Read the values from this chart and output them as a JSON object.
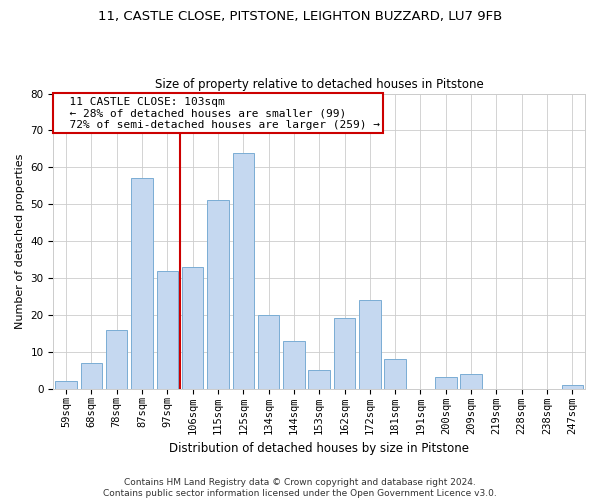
{
  "title1": "11, CASTLE CLOSE, PITSTONE, LEIGHTON BUZZARD, LU7 9FB",
  "title2": "Size of property relative to detached houses in Pitstone",
  "xlabel": "Distribution of detached houses by size in Pitstone",
  "ylabel": "Number of detached properties",
  "categories": [
    "59sqm",
    "68sqm",
    "78sqm",
    "87sqm",
    "97sqm",
    "106sqm",
    "115sqm",
    "125sqm",
    "134sqm",
    "144sqm",
    "153sqm",
    "162sqm",
    "172sqm",
    "181sqm",
    "191sqm",
    "200sqm",
    "209sqm",
    "219sqm",
    "228sqm",
    "238sqm",
    "247sqm"
  ],
  "values": [
    2,
    7,
    16,
    57,
    32,
    33,
    51,
    64,
    20,
    13,
    5,
    19,
    24,
    8,
    0,
    3,
    4,
    0,
    0,
    0,
    1
  ],
  "bar_color": "#c5d8f0",
  "bar_edge_color": "#7aadd4",
  "vline_x_index": 4.5,
  "vline_color": "#cc0000",
  "annotation_title": "11 CASTLE CLOSE: 103sqm",
  "annotation_line1": "← 28% of detached houses are smaller (99)",
  "annotation_line2": "72% of semi-detached houses are larger (259) →",
  "annotation_box_color": "#ffffff",
  "annotation_box_edge_color": "#cc0000",
  "ylim": [
    0,
    80
  ],
  "yticks": [
    0,
    10,
    20,
    30,
    40,
    50,
    60,
    70,
    80
  ],
  "footer1": "Contains HM Land Registry data © Crown copyright and database right 2024.",
  "footer2": "Contains public sector information licensed under the Open Government Licence v3.0.",
  "bg_color": "#ffffff",
  "grid_color": "#cccccc",
  "title1_fontsize": 9.5,
  "title2_fontsize": 8.5,
  "xlabel_fontsize": 8.5,
  "ylabel_fontsize": 8,
  "tick_fontsize": 7.5,
  "annotation_fontsize": 8,
  "footer_fontsize": 6.5
}
